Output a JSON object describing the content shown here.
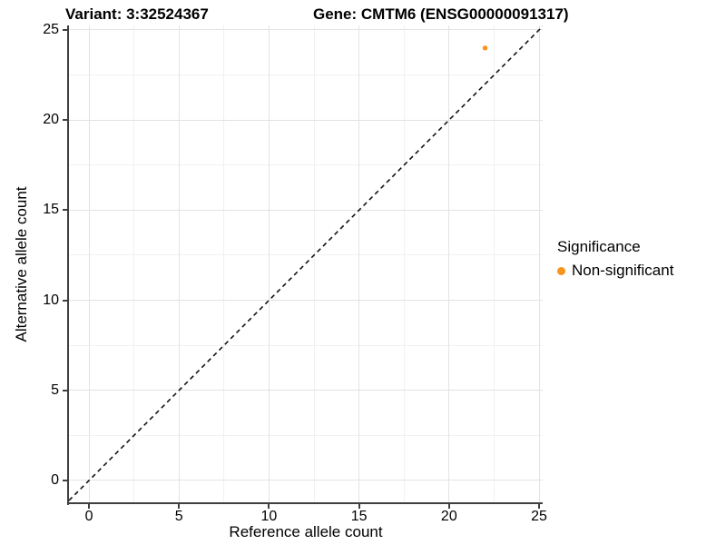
{
  "chart_data": {
    "type": "scatter",
    "title_variant": "Variant: 3:32524367",
    "title_gene": "Gene: CMTM6 (ENSG00000091317)",
    "xlabel": "Reference allele count",
    "ylabel": "Alternative allele count",
    "xlim": [
      -1.11,
      25.2
    ],
    "ylim": [
      -1.26,
      25.25
    ],
    "x_ticks": [
      0,
      5,
      10,
      15,
      20,
      25
    ],
    "y_ticks": [
      0,
      5,
      10,
      15,
      20,
      25
    ],
    "grid": "major+minor",
    "points": [
      {
        "x": 22,
        "y": 24,
        "series": "Non-significant"
      }
    ],
    "reference_line": {
      "slope": 1,
      "intercept": 0,
      "style": "dashed"
    },
    "legend": {
      "title": "Significance",
      "position": "right",
      "items": [
        {
          "label": "Non-significant",
          "color": "#F7941E"
        }
      ]
    }
  },
  "colors": {
    "point": "#F7941E",
    "grid_major": "#e3e3e3",
    "grid_minor": "#f1f1f1",
    "axis": "#3f3f3f",
    "reference_line": "#141414",
    "background": "#ffffff",
    "text": "#000000"
  }
}
